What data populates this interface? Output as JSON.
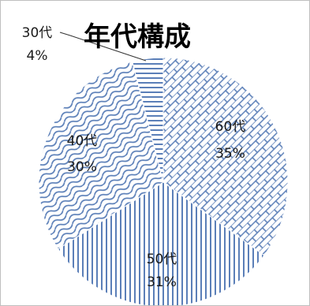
{
  "chart_data": {
    "type": "pie",
    "title": "年代構成",
    "categories": [
      "60代",
      "50代",
      "40代",
      "30代"
    ],
    "values": [
      35,
      31,
      30,
      4
    ],
    "percent_labels": [
      "35%",
      "31%",
      "30%",
      "4%"
    ],
    "fill_color": "#5b7fb8",
    "patterns": [
      "brick",
      "vertical-lines",
      "wave",
      "horizontal-lines"
    ],
    "legend": "none",
    "start": "top",
    "direction": "clockwise"
  }
}
